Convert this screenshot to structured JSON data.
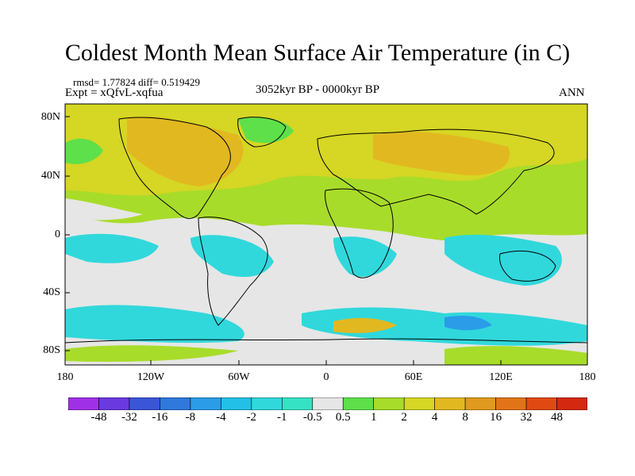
{
  "title": "Coldest Month Mean Surface Air Temperature (in C)",
  "stats": {
    "rmsd_label": "rmsd= 1.77824",
    "diff_label": "diff= 0.519429"
  },
  "experiment": "Expt = xQfvL-xqfua",
  "period": "3052kyr BP - 0000kyr BP",
  "season": "ANN",
  "y_ticks": [
    "80N",
    "40N",
    "0",
    "40S",
    "80S"
  ],
  "x_ticks": [
    "180",
    "120W",
    "60W",
    "0",
    "60E",
    "120E",
    "180"
  ],
  "colorbar": {
    "labels": [
      "-48",
      "-32",
      "-16",
      "-8",
      "-4",
      "-2",
      "-1",
      "-0.5",
      "0.5",
      "1",
      "2",
      "4",
      "8",
      "16",
      "32",
      "48"
    ],
    "colors": [
      "#a030e8",
      "#6a3ae0",
      "#3a55d8",
      "#2f78dc",
      "#2a9ce8",
      "#22c0e6",
      "#30d8dc",
      "#36e2c4",
      "#e6e6e6",
      "#5ee04a",
      "#a8dc2a",
      "#d6d624",
      "#e2b820",
      "#e09a1c",
      "#e27418",
      "#e04a12",
      "#d62810"
    ]
  },
  "map": {
    "background_color": "#e6e6e6",
    "palette_note": "filled contour bands"
  }
}
